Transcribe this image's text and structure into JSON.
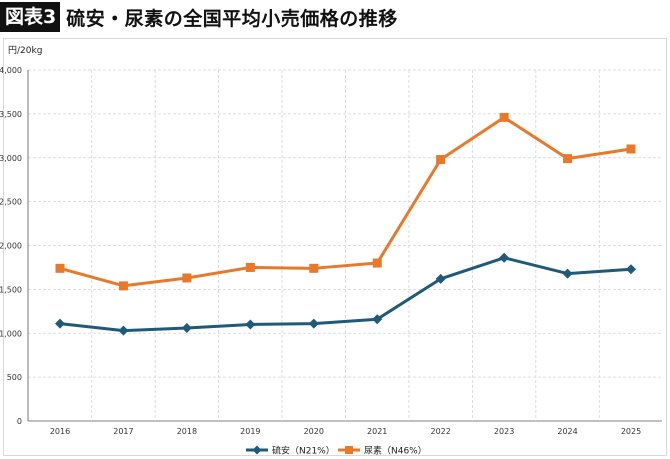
{
  "header": {
    "badge": "図表3",
    "title": "硫安・尿素の全国平均小売価格の推移"
  },
  "chart_data": {
    "type": "line",
    "ylabel": "円/20kg",
    "ylim": [
      0,
      4000
    ],
    "yticks": [
      0,
      500,
      1000,
      1500,
      2000,
      2500,
      3000,
      3500,
      4000
    ],
    "ytick_labels": [
      "0",
      "500",
      "1,000",
      "1,500",
      "2,000",
      "2,500",
      "3,000",
      "3,500",
      "4,000"
    ],
    "categories": [
      "2016",
      "2017",
      "2018",
      "2019",
      "2020",
      "2021",
      "2022",
      "2023",
      "2024",
      "2025"
    ],
    "grid": true,
    "legend_position": "bottom",
    "series": [
      {
        "name": "硫安（N21%）",
        "color": "#1f5a7a",
        "marker": "diamond",
        "values": [
          1110,
          1030,
          1060,
          1100,
          1110,
          1160,
          1620,
          1860,
          1680,
          1730
        ]
      },
      {
        "name": "尿素（N46%）",
        "color": "#e8782a",
        "marker": "square",
        "values": [
          1740,
          1540,
          1630,
          1750,
          1740,
          1800,
          2980,
          3460,
          2990,
          3100
        ]
      }
    ]
  }
}
